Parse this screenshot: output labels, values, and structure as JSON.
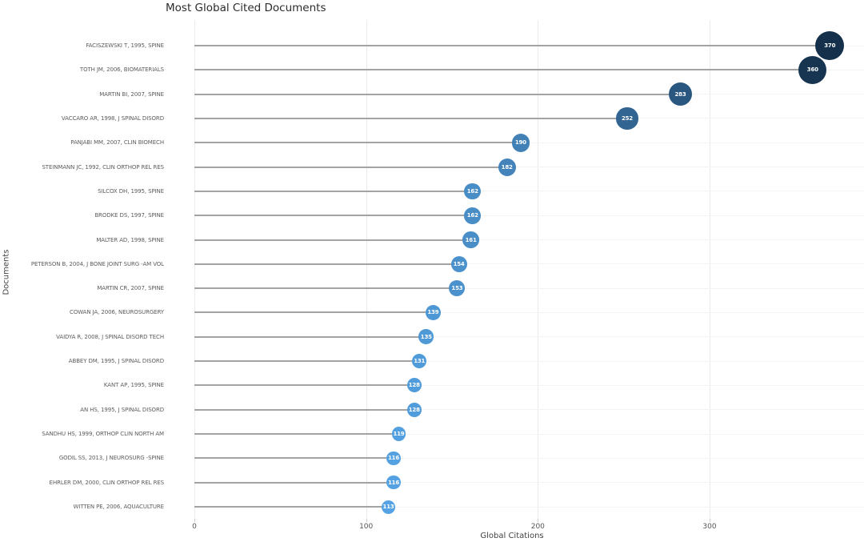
{
  "chart_data": {
    "type": "lollipop",
    "title": "Most Global Cited Documents",
    "xlabel": "Global Citations",
    "ylabel": "Documents",
    "xlim": [
      0,
      390
    ],
    "xticks": [
      0,
      100,
      200,
      300
    ],
    "grid": true,
    "legend": "none",
    "color_scale": {
      "low_value_color": "#55a3e4",
      "high_value_color": "#14304b",
      "min_value": 113,
      "max_value": 370
    },
    "categories": [
      "FACISZEWSKI T, 1995, SPINE",
      "TOTH JM, 2006, BIOMATERIALS",
      "MARTIN BI, 2007, SPINE",
      "VACCARO AR, 1998, J SPINAL DISORD",
      "PANJABI MM, 2007, CLIN BIOMECH",
      "STEINMANN JC, 1992, CLIN ORTHOP REL RES",
      "SILCOX DH, 1995, SPINE",
      "BRODKE DS, 1997, SPINE",
      "MALTER AD, 1998, SPINE",
      "PETERSON B, 2004, J BONE JOINT SURG -AM VOL",
      "MARTIN CR, 2007, SPINE",
      "COWAN JA, 2006, NEUROSURGERY",
      "VAIDYA R, 2008, J SPINAL DISORD TECH",
      "ABBEY DM, 1995, J SPINAL DISORD",
      "KANT AP, 1995, SPINE",
      "AN HS, 1995, J SPINAL DISORD",
      "SANDHU HS, 1999, ORTHOP CLIN NORTH AM",
      "GODIL SS, 2013, J NEUROSURG -SPINE",
      "EHRLER DM, 2000, CLIN ORTHOP REL RES",
      "WITTEN PE, 2006, AQUACULTURE"
    ],
    "values": [
      370,
      360,
      283,
      252,
      190,
      182,
      162,
      162,
      161,
      154,
      153,
      139,
      135,
      131,
      128,
      128,
      119,
      116,
      116,
      113
    ]
  }
}
